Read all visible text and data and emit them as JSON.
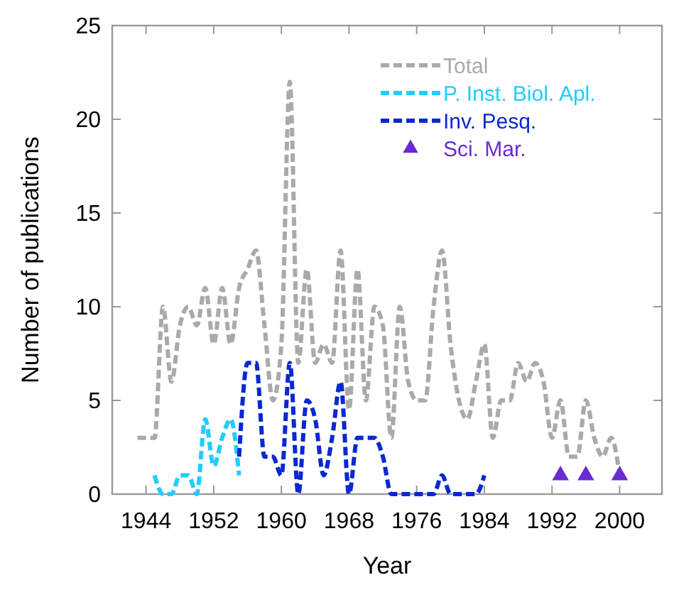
{
  "chart_data": {
    "type": "line",
    "xlabel": "Year",
    "ylabel": "Number of publications",
    "xlim": [
      1940,
      2005
    ],
    "ylim": [
      0,
      25
    ],
    "xticks": [
      1944,
      1952,
      1960,
      1968,
      1976,
      1984,
      1992,
      2000
    ],
    "yticks": [
      0,
      5,
      10,
      15,
      20,
      25
    ],
    "line_style": "dashed",
    "legend": "top right",
    "grid": false,
    "series": [
      {
        "name": "Total",
        "color": "#aaaaaa",
        "x": [
          1943,
          1944,
          1945,
          1946,
          1947,
          1948,
          1949,
          1950,
          1951,
          1952,
          1953,
          1954,
          1955,
          1956,
          1957,
          1958,
          1959,
          1960,
          1961,
          1962,
          1963,
          1964,
          1965,
          1966,
          1967,
          1968,
          1969,
          1970,
          1971,
          1972,
          1973,
          1974,
          1975,
          1976,
          1977,
          1978,
          1979,
          1980,
          1981,
          1982,
          1983,
          1984,
          1985,
          1986,
          1987,
          1988,
          1989,
          1990,
          1991,
          1992,
          1993,
          1994,
          1995,
          1996,
          1997,
          1998,
          1999,
          2000
        ],
        "values": [
          3,
          3,
          3,
          10,
          6,
          9,
          10,
          9,
          11,
          8,
          11,
          8,
          11,
          12,
          13,
          9,
          5,
          8,
          22,
          7,
          12,
          7,
          8,
          7,
          13,
          4.5,
          12,
          5,
          10,
          9,
          3,
          10,
          6,
          5,
          5,
          10,
          13,
          8,
          5,
          4,
          6,
          8,
          3,
          5,
          5,
          7,
          6,
          7,
          6,
          3,
          5,
          2,
          2,
          5,
          3,
          2,
          3,
          1
        ]
      },
      {
        "name": "P. Inst. Biol. Apl.",
        "color": "#22ccff",
        "x": [
          1945,
          1946,
          1947,
          1948,
          1949,
          1950,
          1951,
          1952,
          1953,
          1954,
          1955
        ],
        "values": [
          1,
          0,
          0,
          1,
          1,
          0,
          4,
          1.5,
          3,
          4,
          1
        ]
      },
      {
        "name": "Inv. Pesq.",
        "color": "#0a28d2",
        "x": [
          1955,
          1956,
          1957,
          1958,
          1959,
          1960,
          1961,
          1962,
          1963,
          1964,
          1965,
          1966,
          1967,
          1968,
          1969,
          1970,
          1971,
          1972,
          1973,
          1974,
          1975,
          1976,
          1977,
          1978,
          1979,
          1980,
          1981,
          1982,
          1983,
          1984
        ],
        "values": [
          2,
          7,
          7,
          2,
          2,
          1,
          7,
          0,
          5,
          4,
          1,
          3,
          6,
          0,
          3,
          3,
          3,
          2,
          0,
          0,
          0,
          0,
          0,
          0,
          1,
          0,
          0,
          0,
          0,
          1
        ]
      },
      {
        "name": "Sci. Mar.",
        "type": "scatter",
        "marker": "triangle",
        "color": "#6a2bd0",
        "x": [
          1993,
          1996,
          2000
        ],
        "values": [
          1,
          1,
          1
        ]
      }
    ]
  }
}
